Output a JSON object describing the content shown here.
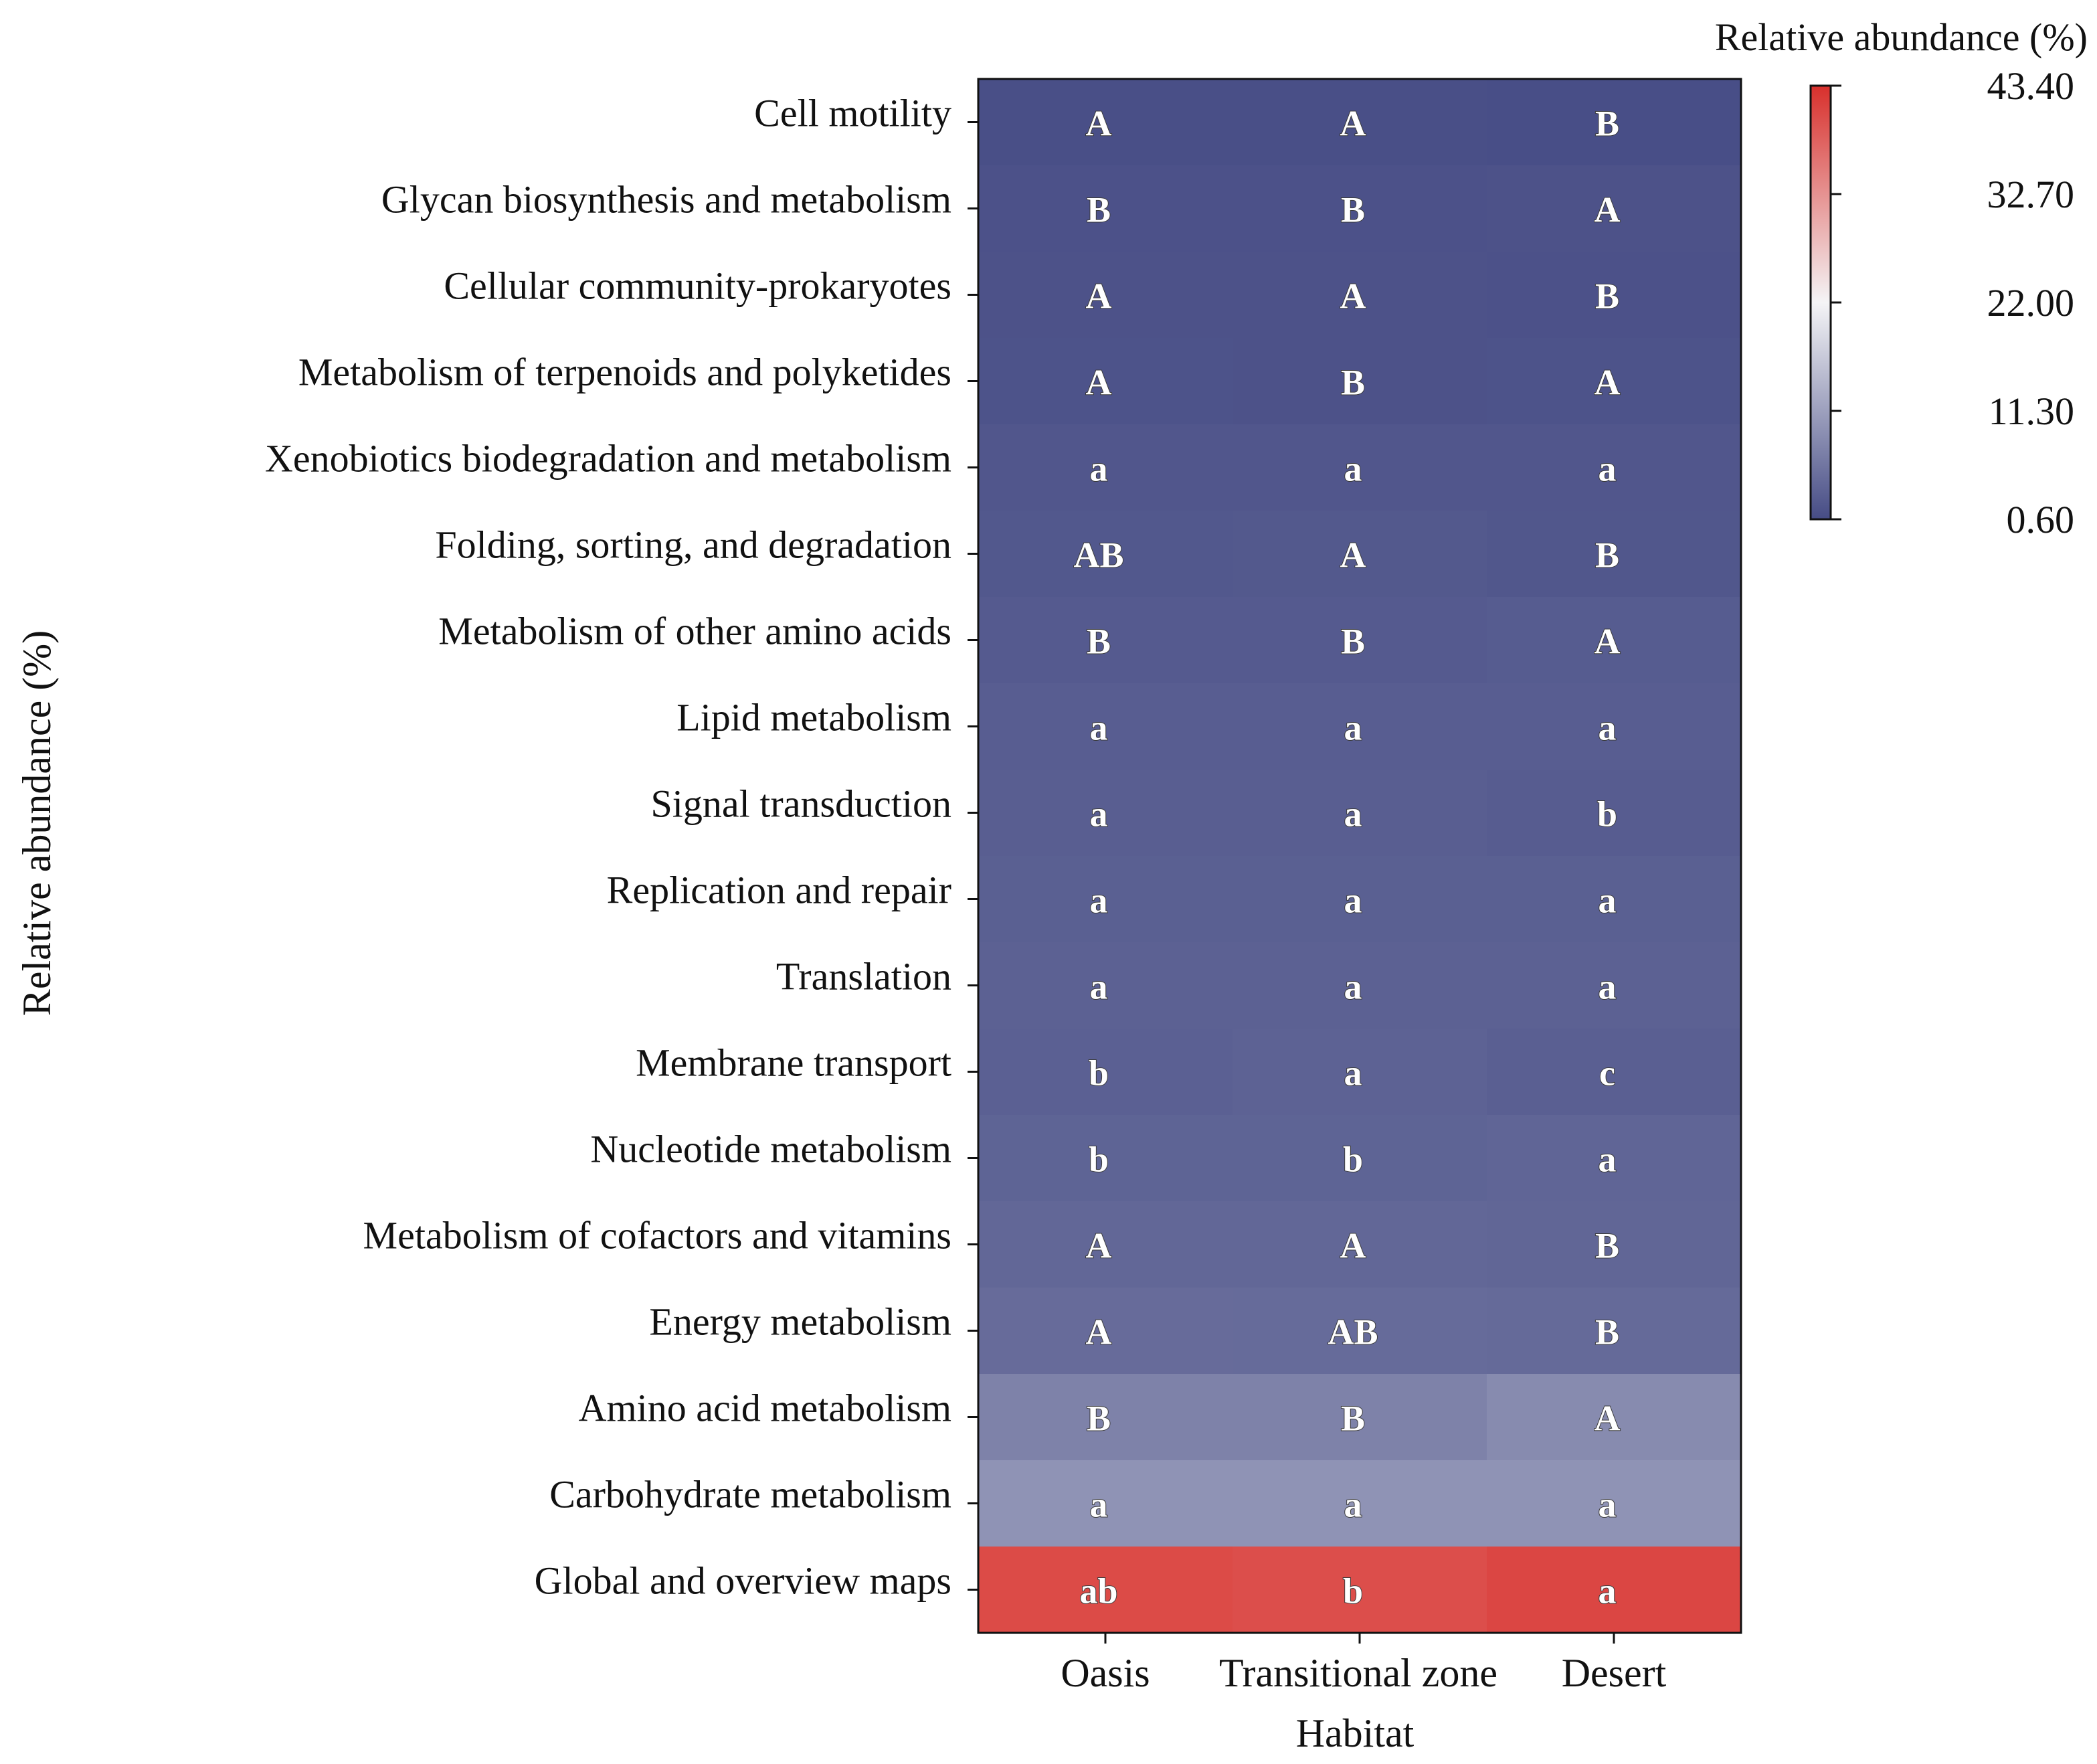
{
  "chart_data": {
    "type": "heatmap",
    "title": "",
    "xlabel": "Habitat",
    "ylabel": "Relative abundance (%)",
    "columns": [
      "Oasis",
      "Transitional zone",
      "Desert"
    ],
    "rows": [
      "Cell motility",
      "Glycan biosynthesis and metabolism",
      "Cellular community-prokaryotes",
      "Metabolism of terpenoids and polyketides",
      "Xenobiotics biodegradation and metabolism",
      "Folding, sorting, and degradation",
      "Metabolism of other amino acids",
      "Lipid metabolism",
      "Signal transduction",
      "Replication and repair",
      "Translation",
      "Membrane transport",
      "Nucleotide metabolism",
      "Metabolism of cofactors and vitamins",
      "Energy metabolism",
      "Amino acid metabolism",
      "Carbohydrate metabolism",
      "Global and overview maps"
    ],
    "values": [
      [
        1.0,
        1.0,
        0.9
      ],
      [
        1.3,
        1.3,
        1.4
      ],
      [
        1.4,
        1.4,
        1.3
      ],
      [
        1.5,
        1.4,
        1.5
      ],
      [
        1.9,
        1.9,
        1.9
      ],
      [
        2.1,
        2.2,
        2.0
      ],
      [
        2.4,
        2.4,
        2.6
      ],
      [
        2.8,
        2.8,
        2.8
      ],
      [
        2.9,
        2.9,
        2.7
      ],
      [
        3.1,
        3.1,
        3.1
      ],
      [
        3.3,
        3.3,
        3.3
      ],
      [
        3.2,
        3.4,
        3.0
      ],
      [
        3.6,
        3.6,
        3.8
      ],
      [
        4.1,
        4.1,
        3.9
      ],
      [
        4.6,
        4.5,
        4.4
      ],
      [
        7.5,
        7.5,
        8.6
      ],
      [
        9.6,
        9.6,
        9.6
      ],
      [
        40.5,
        40.1,
        41.0
      ]
    ],
    "significance": [
      [
        "A",
        "A",
        "B"
      ],
      [
        "B",
        "B",
        "A"
      ],
      [
        "A",
        "A",
        "B"
      ],
      [
        "A",
        "B",
        "A"
      ],
      [
        "a",
        "a",
        "a"
      ],
      [
        "AB",
        "A",
        "B"
      ],
      [
        "B",
        "B",
        "A"
      ],
      [
        "a",
        "a",
        "a"
      ],
      [
        "a",
        "a",
        "b"
      ],
      [
        "a",
        "a",
        "a"
      ],
      [
        "a",
        "a",
        "a"
      ],
      [
        "b",
        "a",
        "c"
      ],
      [
        "b",
        "b",
        "a"
      ],
      [
        "A",
        "A",
        "B"
      ],
      [
        "A",
        "AB",
        "B"
      ],
      [
        "B",
        "B",
        "A"
      ],
      [
        "a",
        "a",
        "a"
      ],
      [
        "ab",
        "b",
        "a"
      ]
    ],
    "colorbar": {
      "title": "Relative abundance (%)",
      "ticks": [
        "43.40",
        "32.70",
        "22.00",
        "11.30",
        "0.60"
      ],
      "min": 0.6,
      "max": 43.4,
      "colors": {
        "low": "#464c85",
        "mid": "#f4f4f6",
        "high": "#d8302c"
      }
    }
  }
}
